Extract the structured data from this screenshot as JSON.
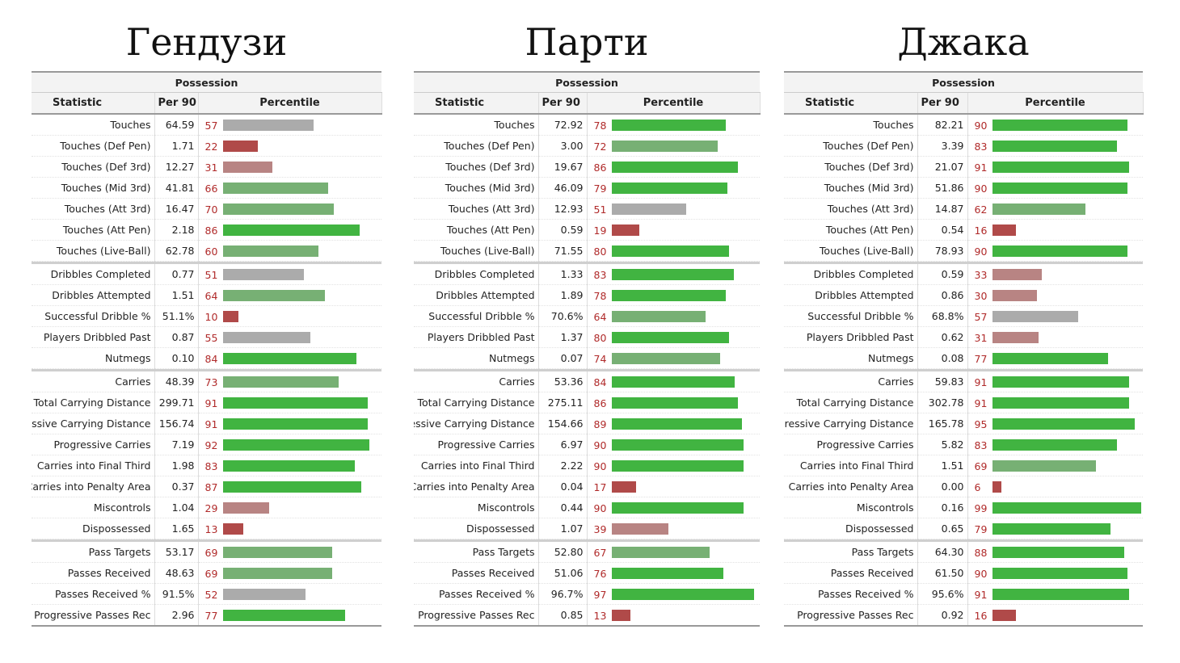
{
  "colors": {
    "high": "#41b441",
    "mid_high": "#77b074",
    "neutral": "#ababab",
    "mid_low": "#b88483",
    "low": "#b04a49",
    "number": "#b02a2a"
  },
  "chart_data": [
    {
      "type": "table",
      "title": "Гендузи",
      "section": "Possession",
      "columns": [
        "Statistic",
        "Per 90",
        "Percentile"
      ],
      "groups": [
        [
          {
            "stat": "Touches",
            "per90": "64.59",
            "percentile": 57
          },
          {
            "stat": "Touches (Def Pen)",
            "per90": "1.71",
            "percentile": 22
          },
          {
            "stat": "Touches (Def 3rd)",
            "per90": "12.27",
            "percentile": 31
          },
          {
            "stat": "Touches (Mid 3rd)",
            "per90": "41.81",
            "percentile": 66
          },
          {
            "stat": "Touches (Att 3rd)",
            "per90": "16.47",
            "percentile": 70
          },
          {
            "stat": "Touches (Att Pen)",
            "per90": "2.18",
            "percentile": 86
          },
          {
            "stat": "Touches (Live-Ball)",
            "per90": "62.78",
            "percentile": 60
          }
        ],
        [
          {
            "stat": "Dribbles Completed",
            "per90": "0.77",
            "percentile": 51
          },
          {
            "stat": "Dribbles Attempted",
            "per90": "1.51",
            "percentile": 64
          },
          {
            "stat": "Successful Dribble %",
            "per90": "51.1%",
            "percentile": 10
          },
          {
            "stat": "Players Dribbled Past",
            "per90": "0.87",
            "percentile": 55
          },
          {
            "stat": "Nutmegs",
            "per90": "0.10",
            "percentile": 84
          }
        ],
        [
          {
            "stat": "Carries",
            "per90": "48.39",
            "percentile": 73
          },
          {
            "stat": "Total Carrying Distance",
            "per90": "299.71",
            "percentile": 91
          },
          {
            "stat": "Progressive Carrying Distance",
            "per90": "156.74",
            "percentile": 91
          },
          {
            "stat": "Progressive Carries",
            "per90": "7.19",
            "percentile": 92
          },
          {
            "stat": "Carries into Final Third",
            "per90": "1.98",
            "percentile": 83
          },
          {
            "stat": "Carries into Penalty Area",
            "per90": "0.37",
            "percentile": 87
          },
          {
            "stat": "Miscontrols",
            "per90": "1.04",
            "percentile": 29
          },
          {
            "stat": "Dispossessed",
            "per90": "1.65",
            "percentile": 13
          }
        ],
        [
          {
            "stat": "Pass Targets",
            "per90": "53.17",
            "percentile": 69
          },
          {
            "stat": "Passes Received",
            "per90": "48.63",
            "percentile": 69
          },
          {
            "stat": "Passes Received %",
            "per90": "91.5%",
            "percentile": 52
          },
          {
            "stat": "Progressive Passes Rec",
            "per90": "2.96",
            "percentile": 77
          }
        ]
      ]
    },
    {
      "type": "table",
      "title": "Парти",
      "section": "Possession",
      "columns": [
        "Statistic",
        "Per 90",
        "Percentile"
      ],
      "groups": [
        [
          {
            "stat": "Touches",
            "per90": "72.92",
            "percentile": 78
          },
          {
            "stat": "Touches (Def Pen)",
            "per90": "3.00",
            "percentile": 72
          },
          {
            "stat": "Touches (Def 3rd)",
            "per90": "19.67",
            "percentile": 86
          },
          {
            "stat": "Touches (Mid 3rd)",
            "per90": "46.09",
            "percentile": 79
          },
          {
            "stat": "Touches (Att 3rd)",
            "per90": "12.93",
            "percentile": 51
          },
          {
            "stat": "Touches (Att Pen)",
            "per90": "0.59",
            "percentile": 19
          },
          {
            "stat": "Touches (Live-Ball)",
            "per90": "71.55",
            "percentile": 80
          }
        ],
        [
          {
            "stat": "Dribbles Completed",
            "per90": "1.33",
            "percentile": 83
          },
          {
            "stat": "Dribbles Attempted",
            "per90": "1.89",
            "percentile": 78
          },
          {
            "stat": "Successful Dribble %",
            "per90": "70.6%",
            "percentile": 64
          },
          {
            "stat": "Players Dribbled Past",
            "per90": "1.37",
            "percentile": 80
          },
          {
            "stat": "Nutmegs",
            "per90": "0.07",
            "percentile": 74
          }
        ],
        [
          {
            "stat": "Carries",
            "per90": "53.36",
            "percentile": 84
          },
          {
            "stat": "Total Carrying Distance",
            "per90": "275.11",
            "percentile": 86
          },
          {
            "stat": "Progressive Carrying Distance",
            "per90": "154.66",
            "percentile": 89
          },
          {
            "stat": "Progressive Carries",
            "per90": "6.97",
            "percentile": 90
          },
          {
            "stat": "Carries into Final Third",
            "per90": "2.22",
            "percentile": 90
          },
          {
            "stat": "Carries into Penalty Area",
            "per90": "0.04",
            "percentile": 17
          },
          {
            "stat": "Miscontrols",
            "per90": "0.44",
            "percentile": 90
          },
          {
            "stat": "Dispossessed",
            "per90": "1.07",
            "percentile": 39
          }
        ],
        [
          {
            "stat": "Pass Targets",
            "per90": "52.80",
            "percentile": 67
          },
          {
            "stat": "Passes Received",
            "per90": "51.06",
            "percentile": 76
          },
          {
            "stat": "Passes Received %",
            "per90": "96.7%",
            "percentile": 97
          },
          {
            "stat": "Progressive Passes Rec",
            "per90": "0.85",
            "percentile": 13
          }
        ]
      ]
    },
    {
      "type": "table",
      "title": "Джака",
      "section": "Possession",
      "columns": [
        "Statistic",
        "Per 90",
        "Percentile"
      ],
      "groups": [
        [
          {
            "stat": "Touches",
            "per90": "82.21",
            "percentile": 90
          },
          {
            "stat": "Touches (Def Pen)",
            "per90": "3.39",
            "percentile": 83
          },
          {
            "stat": "Touches (Def 3rd)",
            "per90": "21.07",
            "percentile": 91
          },
          {
            "stat": "Touches (Mid 3rd)",
            "per90": "51.86",
            "percentile": 90
          },
          {
            "stat": "Touches (Att 3rd)",
            "per90": "14.87",
            "percentile": 62
          },
          {
            "stat": "Touches (Att Pen)",
            "per90": "0.54",
            "percentile": 16
          },
          {
            "stat": "Touches (Live-Ball)",
            "per90": "78.93",
            "percentile": 90
          }
        ],
        [
          {
            "stat": "Dribbles Completed",
            "per90": "0.59",
            "percentile": 33
          },
          {
            "stat": "Dribbles Attempted",
            "per90": "0.86",
            "percentile": 30
          },
          {
            "stat": "Successful Dribble %",
            "per90": "68.8%",
            "percentile": 57
          },
          {
            "stat": "Players Dribbled Past",
            "per90": "0.62",
            "percentile": 31
          },
          {
            "stat": "Nutmegs",
            "per90": "0.08",
            "percentile": 77
          }
        ],
        [
          {
            "stat": "Carries",
            "per90": "59.83",
            "percentile": 91
          },
          {
            "stat": "Total Carrying Distance",
            "per90": "302.78",
            "percentile": 91
          },
          {
            "stat": "Progressive Carrying Distance",
            "per90": "165.78",
            "percentile": 95
          },
          {
            "stat": "Progressive Carries",
            "per90": "5.82",
            "percentile": 83
          },
          {
            "stat": "Carries into Final Third",
            "per90": "1.51",
            "percentile": 69
          },
          {
            "stat": "Carries into Penalty Area",
            "per90": "0.00",
            "percentile": 6
          },
          {
            "stat": "Miscontrols",
            "per90": "0.16",
            "percentile": 99
          },
          {
            "stat": "Dispossessed",
            "per90": "0.65",
            "percentile": 79
          }
        ],
        [
          {
            "stat": "Pass Targets",
            "per90": "64.30",
            "percentile": 88
          },
          {
            "stat": "Passes Received",
            "per90": "61.50",
            "percentile": 90
          },
          {
            "stat": "Passes Received %",
            "per90": "95.6%",
            "percentile": 91
          },
          {
            "stat": "Progressive Passes Rec",
            "per90": "0.92",
            "percentile": 16
          }
        ]
      ]
    }
  ]
}
